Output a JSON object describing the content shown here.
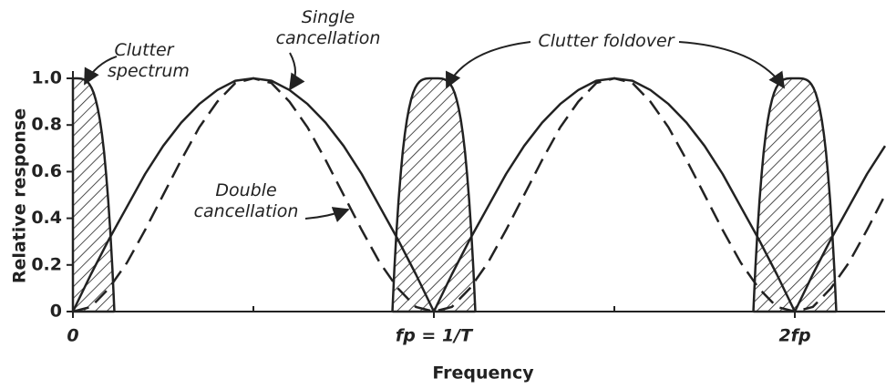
{
  "chart_data": {
    "type": "line",
    "x_label": "Frequency",
    "y_label": "Relative response",
    "x": [
      0,
      0.05,
      0.1,
      0.15,
      0.2,
      0.25,
      0.3,
      0.35,
      0.4,
      0.45,
      0.5,
      0.55,
      0.6,
      0.65,
      0.7,
      0.75,
      0.8,
      0.85,
      0.9,
      0.95,
      1,
      1.05,
      1.1,
      1.15,
      1.2,
      1.25,
      1.3,
      1.35,
      1.4,
      1.45,
      1.5,
      1.55,
      1.6,
      1.65,
      1.7,
      1.75,
      1.8,
      1.85,
      1.9,
      1.95,
      2,
      2.05,
      2.1,
      2.15,
      2.2,
      2.25
    ],
    "series": [
      {
        "name": "Single cancellation",
        "color": "#222",
        "dash": false,
        "values": [
          0,
          0.16,
          0.31,
          0.45,
          0.59,
          0.71,
          0.81,
          0.89,
          0.95,
          0.99,
          1,
          0.99,
          0.95,
          0.89,
          0.81,
          0.71,
          0.59,
          0.45,
          0.31,
          0.16,
          0,
          0.16,
          0.31,
          0.45,
          0.59,
          0.71,
          0.81,
          0.89,
          0.95,
          0.99,
          1,
          0.99,
          0.95,
          0.89,
          0.81,
          0.71,
          0.59,
          0.45,
          0.31,
          0.16,
          0,
          0.16,
          0.31,
          0.45,
          0.59,
          0.71
        ]
      },
      {
        "name": "Double cancellation",
        "color": "#222",
        "dash": true,
        "values": [
          0,
          0.02,
          0.1,
          0.21,
          0.35,
          0.5,
          0.65,
          0.79,
          0.9,
          0.98,
          1,
          0.98,
          0.9,
          0.79,
          0.65,
          0.5,
          0.35,
          0.21,
          0.1,
          0.02,
          0,
          0.02,
          0.1,
          0.21,
          0.35,
          0.5,
          0.65,
          0.79,
          0.9,
          0.98,
          1,
          0.98,
          0.9,
          0.79,
          0.65,
          0.5,
          0.35,
          0.21,
          0.1,
          0.02,
          0,
          0.02,
          0.1,
          0.21,
          0.35,
          0.5
        ]
      }
    ],
    "clutter": {
      "centers": [
        0,
        1,
        2
      ],
      "peak": 1,
      "half_width": 0.115
    },
    "annotations": {
      "spectrum": "Clutter spectrum",
      "foldover": "Clutter foldover"
    },
    "xlim": [
      0,
      2.25
    ],
    "xticks": [
      {
        "value": 0,
        "label": "0"
      },
      {
        "value": 1,
        "label": "fp = 1/T"
      },
      {
        "value": 2,
        "label": "2fp"
      }
    ],
    "xminor_ticks": [
      0.5,
      1.5
    ],
    "ylim": [
      0,
      1
    ],
    "yticks": [
      0,
      0.2,
      0.4,
      0.6,
      0.8,
      {
        "value": 1,
        "label": "1.0"
      }
    ]
  }
}
